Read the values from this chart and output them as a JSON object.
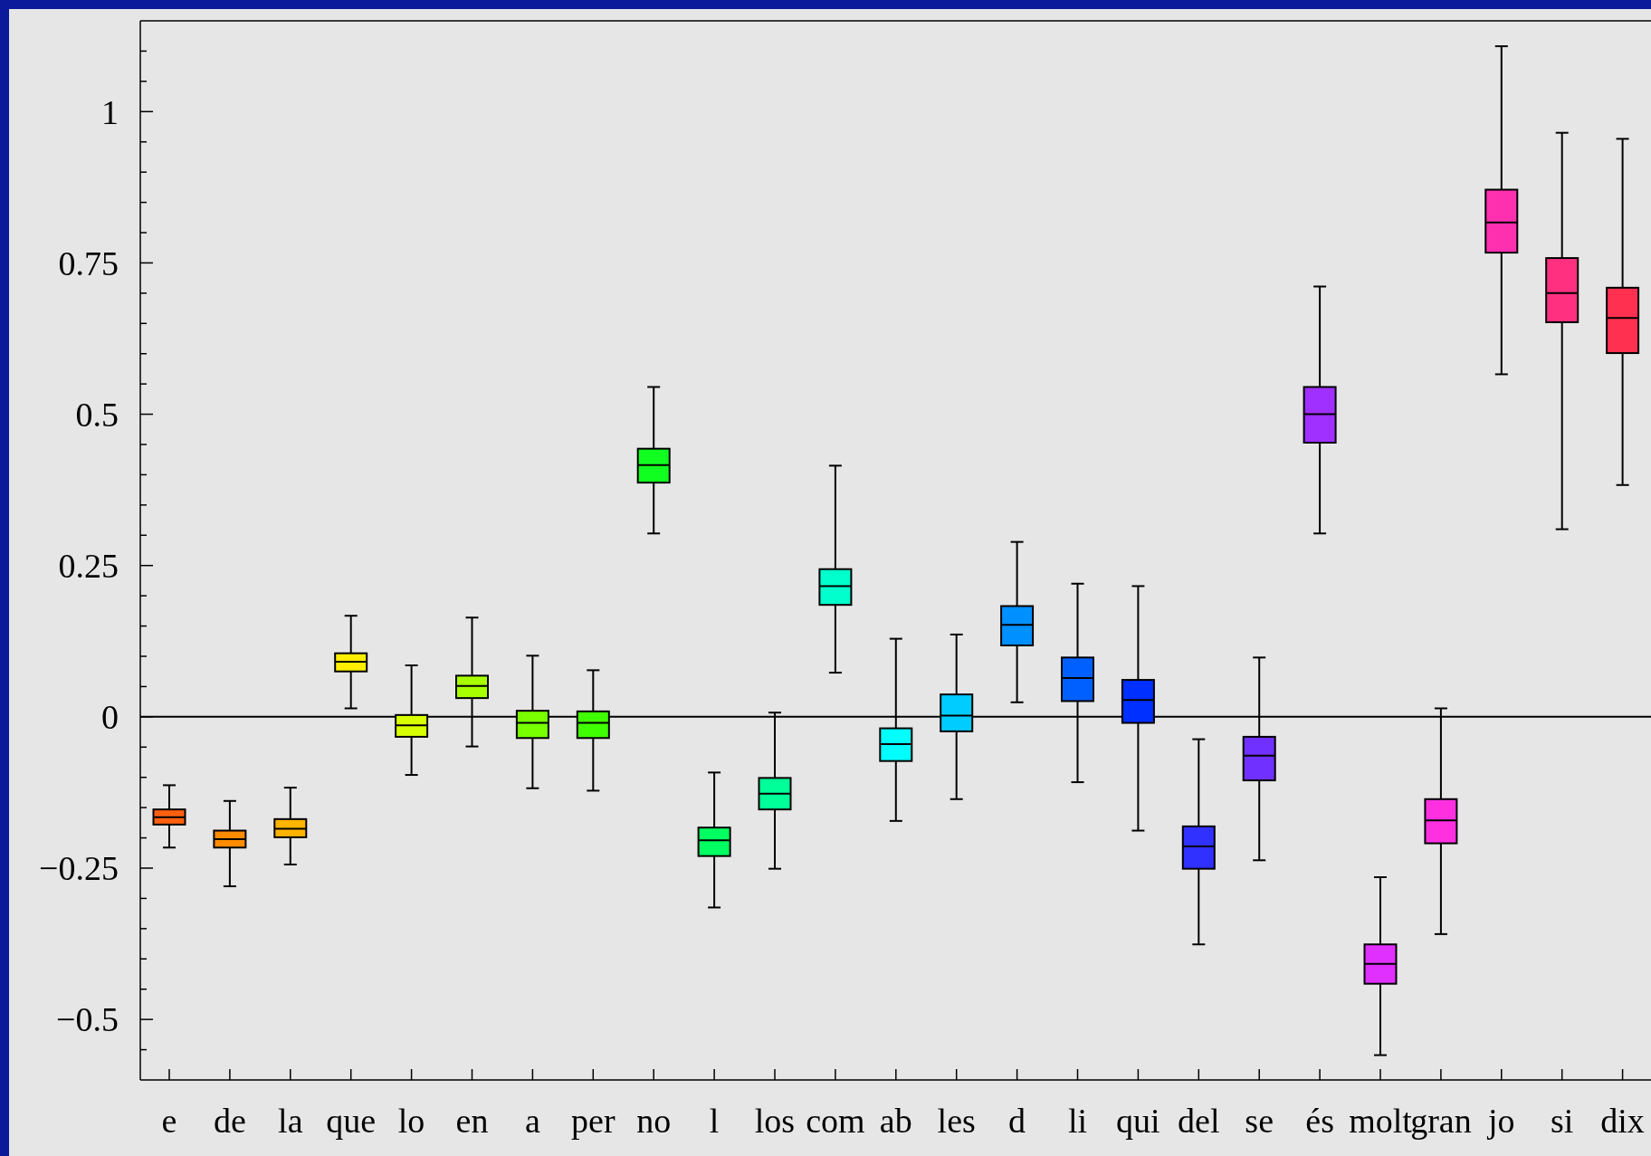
{
  "chart_data": {
    "type": "box",
    "categories": [
      "e",
      "de",
      "la",
      "que",
      "lo",
      "en",
      "a",
      "per",
      "no",
      "l",
      "los",
      "com",
      "ab",
      "les",
      "d",
      "li",
      "qui",
      "del",
      "se",
      "és",
      "molt",
      "gran",
      "jo",
      "si",
      "dix"
    ],
    "colors": [
      "#ff6010",
      "#ff8c00",
      "#ffb400",
      "#ffee00",
      "#d8ff00",
      "#a8ff00",
      "#78ff00",
      "#40ff00",
      "#10ff20",
      "#00ff60",
      "#00ff98",
      "#00ffcc",
      "#00ffff",
      "#00ccff",
      "#0090ff",
      "#0060ff",
      "#0030ff",
      "#3030ff",
      "#7030ff",
      "#a030ff",
      "#e030ff",
      "#ff30e0",
      "#ff30b0",
      "#ff3080",
      "#ff3050"
    ],
    "boxes": [
      {
        "low": -0.216,
        "q1": -0.178,
        "median": -0.166,
        "q3": -0.153,
        "high": -0.113
      },
      {
        "low": -0.28,
        "q1": -0.216,
        "median": -0.202,
        "q3": -0.188,
        "high": -0.139
      },
      {
        "low": -0.244,
        "q1": -0.199,
        "median": -0.185,
        "q3": -0.169,
        "high": -0.117
      },
      {
        "low": 0.014,
        "q1": 0.075,
        "median": 0.091,
        "q3": 0.105,
        "high": 0.167
      },
      {
        "low": -0.096,
        "q1": -0.033,
        "median": -0.014,
        "q3": 0.003,
        "high": 0.085
      },
      {
        "low": -0.049,
        "q1": 0.031,
        "median": 0.051,
        "q3": 0.068,
        "high": 0.164
      },
      {
        "low": -0.118,
        "q1": -0.035,
        "median": -0.01,
        "q3": 0.01,
        "high": 0.101
      },
      {
        "low": -0.122,
        "q1": -0.035,
        "median": -0.01,
        "q3": 0.009,
        "high": 0.077
      },
      {
        "low": 0.303,
        "q1": 0.387,
        "median": 0.416,
        "q3": 0.443,
        "high": 0.545
      },
      {
        "low": -0.315,
        "q1": -0.23,
        "median": -0.204,
        "q3": -0.183,
        "high": -0.092
      },
      {
        "low": -0.251,
        "q1": -0.153,
        "median": -0.127,
        "q3": -0.101,
        "high": 0.007
      },
      {
        "low": 0.073,
        "q1": 0.185,
        "median": 0.216,
        "q3": 0.244,
        "high": 0.415
      },
      {
        "low": -0.172,
        "q1": -0.073,
        "median": -0.045,
        "q3": -0.019,
        "high": 0.129
      },
      {
        "low": -0.136,
        "q1": -0.024,
        "median": 0.002,
        "q3": 0.037,
        "high": 0.136
      },
      {
        "low": 0.024,
        "q1": 0.118,
        "median": 0.152,
        "q3": 0.183,
        "high": 0.289
      },
      {
        "low": -0.108,
        "q1": 0.026,
        "median": 0.064,
        "q3": 0.098,
        "high": 0.22
      },
      {
        "low": -0.188,
        "q1": -0.01,
        "median": 0.028,
        "q3": 0.061,
        "high": 0.216
      },
      {
        "low": -0.376,
        "q1": -0.251,
        "median": -0.214,
        "q3": -0.181,
        "high": -0.037
      },
      {
        "low": -0.237,
        "q1": -0.105,
        "median": -0.064,
        "q3": -0.033,
        "high": 0.098
      },
      {
        "low": 0.303,
        "q1": 0.453,
        "median": 0.5,
        "q3": 0.545,
        "high": 0.711
      },
      {
        "low": -0.559,
        "q1": -0.441,
        "median": -0.408,
        "q3": -0.376,
        "high": -0.265
      },
      {
        "low": -0.359,
        "q1": -0.209,
        "median": -0.171,
        "q3": -0.136,
        "high": 0.014
      },
      {
        "low": 0.566,
        "q1": 0.767,
        "median": 0.817,
        "q3": 0.871,
        "high": 1.108
      },
      {
        "low": 0.31,
        "q1": 0.652,
        "median": 0.7,
        "q3": 0.758,
        "high": 0.965
      },
      {
        "low": 0.383,
        "q1": 0.601,
        "median": 0.659,
        "q3": 0.709,
        "high": 0.955
      }
    ],
    "ylim": [
      -0.6,
      1.15
    ],
    "yticks": [
      {
        "value": -0.55,
        "label": null
      },
      {
        "value": -0.5,
        "label": "−0.5"
      },
      {
        "value": -0.45,
        "label": null
      },
      {
        "value": -0.4,
        "label": null
      },
      {
        "value": -0.35,
        "label": null
      },
      {
        "value": -0.3,
        "label": null
      },
      {
        "value": -0.25,
        "label": "−0.25"
      },
      {
        "value": -0.2,
        "label": null
      },
      {
        "value": -0.15,
        "label": null
      },
      {
        "value": -0.1,
        "label": null
      },
      {
        "value": -0.05,
        "label": null
      },
      0,
      {
        "value": 0.05,
        "label": null
      },
      {
        "value": 0.1,
        "label": null
      },
      {
        "value": 0.15,
        "label": null
      },
      {
        "value": 0.2,
        "label": null
      },
      0.25,
      {
        "value": 0.3,
        "label": null
      },
      {
        "value": 0.35,
        "label": null
      },
      {
        "value": 0.4,
        "label": null
      },
      {
        "value": 0.45,
        "label": null
      },
      0.5,
      {
        "value": 0.55,
        "label": null
      },
      {
        "value": 0.6,
        "label": null
      },
      {
        "value": 0.65,
        "label": null
      },
      {
        "value": 0.7,
        "label": null
      },
      0.75,
      {
        "value": 0.8,
        "label": null
      },
      {
        "value": 0.85,
        "label": null
      },
      {
        "value": 0.9,
        "label": null
      },
      {
        "value": 0.95,
        "label": null
      },
      1,
      {
        "value": 1.05,
        "label": null
      },
      {
        "value": 1.1,
        "label": null
      }
    ],
    "ref_lines": [
      {
        "axis": "y",
        "value": 0,
        "label": null,
        "color": "#000000"
      }
    ]
  }
}
